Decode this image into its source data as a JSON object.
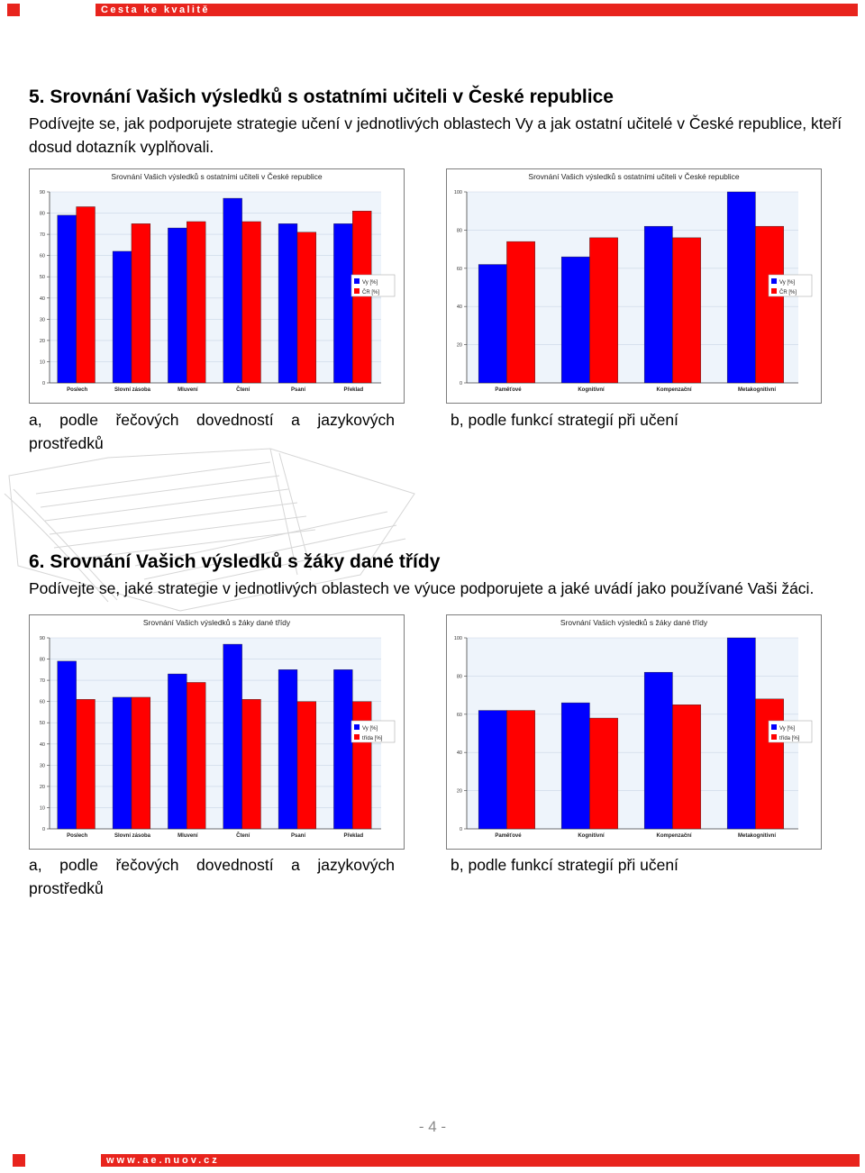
{
  "header": {
    "text": "Cesta ke kvalitě"
  },
  "footer": {
    "text": "www.ae.nuov.cz",
    "page_number": "- 4 -"
  },
  "colors": {
    "accent": "#e8241d",
    "series_you": "#0000ff",
    "series_other": "#ff0000",
    "plot_bg": "#eef4fb"
  },
  "section5": {
    "title": "5. Srovnání Vašich výsledků s ostatními učiteli v České republice",
    "intro": "Podívejte se, jak podporujete strategie učení v jednotlivých oblastech Vy a jak ostatní učitelé v České republice, kteří dosud dotazník vyplňovali.",
    "caption_a": "a, podle řečových dovedností a jazykových prostředků",
    "caption_b": "b, podle funkcí strategií při učení"
  },
  "section6": {
    "title": "6. Srovnání Vašich výsledků s žáky dané třídy",
    "intro": "Podívejte se, jaké strategie v jednotlivých oblastech ve výuce podporujete a jaké uvádí jako používané Vaši žáci.",
    "caption_a": "a, podle řečových dovedností a jazykových prostředků",
    "caption_b": "b, podle funkcí strategií při učení"
  },
  "chart_data": [
    {
      "type": "bar",
      "title": "Srovnání Vašich výsledků s ostatními učiteli v České republice",
      "categories": [
        "Poslech",
        "Slovní zásoba",
        "Mluvení",
        "Čtení",
        "Psaní",
        "Překlad"
      ],
      "series": [
        {
          "name": "Vy [%]",
          "values": [
            79,
            62,
            73,
            87,
            75,
            75
          ]
        },
        {
          "name": "ČR [%]",
          "values": [
            83,
            75,
            76,
            76,
            71,
            81
          ]
        }
      ],
      "yticks": [
        0,
        10,
        20,
        30,
        40,
        50,
        60,
        70,
        80,
        90
      ],
      "ylim": [
        0,
        90
      ],
      "legend": "right"
    },
    {
      "type": "bar",
      "title": "Srovnání Vašich výsledků s ostatními učiteli v České republice",
      "categories": [
        "Paměťové",
        "Kognitivní",
        "Kompenzační",
        "Metakognitivní"
      ],
      "series": [
        {
          "name": "Vy [%]",
          "values": [
            62,
            66,
            82,
            100
          ]
        },
        {
          "name": "ČR [%]",
          "values": [
            74,
            76,
            76,
            82
          ]
        }
      ],
      "yticks": [
        0,
        20,
        40,
        60,
        80,
        100
      ],
      "ylim": [
        0,
        100
      ],
      "legend": "right"
    },
    {
      "type": "bar",
      "title": "Srovnání Vašich výsledků s žáky dané třídy",
      "categories": [
        "Poslech",
        "Slovní zásoba",
        "Mluvení",
        "Čtení",
        "Psaní",
        "Překlad"
      ],
      "series": [
        {
          "name": "Vy [%]",
          "values": [
            79,
            62,
            73,
            87,
            75,
            75
          ]
        },
        {
          "name": "třída [%]",
          "values": [
            61,
            62,
            69,
            61,
            60,
            60
          ]
        }
      ],
      "yticks": [
        0,
        10,
        20,
        30,
        40,
        50,
        60,
        70,
        80,
        90
      ],
      "ylim": [
        0,
        90
      ],
      "legend": "right"
    },
    {
      "type": "bar",
      "title": "Srovnání Vašich výsledků s žáky dané třídy",
      "categories": [
        "Paměťové",
        "Kognitivní",
        "Kompenzační",
        "Metakognitivní"
      ],
      "series": [
        {
          "name": "Vy [%]",
          "values": [
            62,
            66,
            82,
            100
          ]
        },
        {
          "name": "třída [%]",
          "values": [
            62,
            58,
            65,
            68
          ]
        }
      ],
      "yticks": [
        0,
        20,
        40,
        60,
        80,
        100
      ],
      "ylim": [
        0,
        100
      ],
      "legend": "right"
    }
  ]
}
